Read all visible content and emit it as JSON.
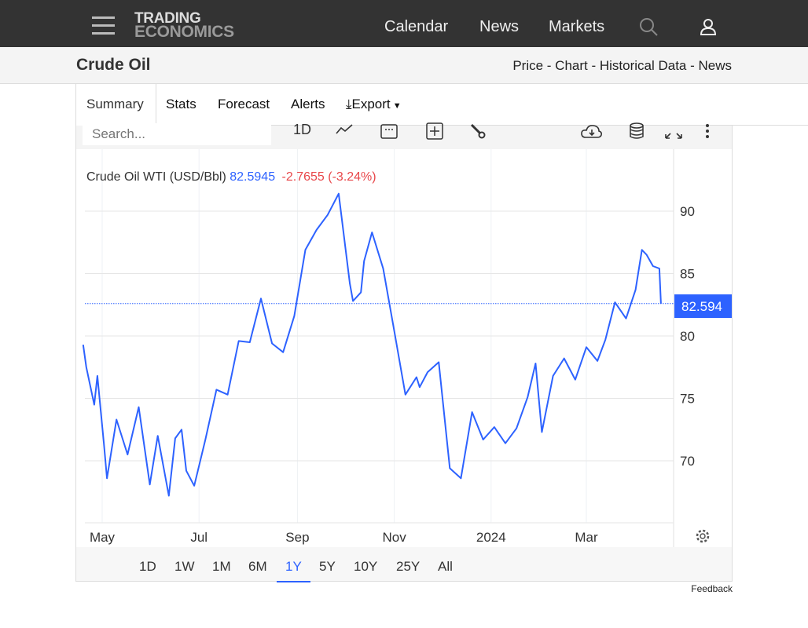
{
  "header": {
    "logo_line1": "TRADING",
    "logo_line2": "ECONOMICS",
    "nav": [
      "Calendar",
      "News",
      "Markets"
    ],
    "icons": [
      "menu-icon",
      "search-icon",
      "user-icon"
    ]
  },
  "page": {
    "title": "Crude Oil",
    "sublinks": "Price - Chart - Historical Data - News"
  },
  "tabs": [
    "Summary",
    "Stats",
    "Forecast",
    "Alerts",
    "Export"
  ],
  "active_tab": "Summary",
  "toolbar": {
    "search_placeholder": "Search...",
    "interval": "1D",
    "icons": [
      "line-chart-icon",
      "calendar-icon",
      "add-icon",
      "wrench-icon",
      "cloud-download-icon",
      "database-icon",
      "fullscreen-icon",
      "more-icon"
    ]
  },
  "legend": {
    "name": "Crude Oil WTI (USD/Bbl)",
    "value": "82.5945",
    "change": "-2.7655 (-3.24%)"
  },
  "price_tag": "82.594",
  "ranges": [
    "1D",
    "1W",
    "1M",
    "6M",
    "1Y",
    "5Y",
    "10Y",
    "25Y",
    "All"
  ],
  "active_range": "1Y",
  "feedback": "Feedback",
  "colors": {
    "line": "#2d62ff",
    "negative": "#e8474a",
    "topbar": "#333333"
  },
  "chart_data": {
    "type": "line",
    "title": "Crude Oil WTI (USD/Bbl)",
    "y_axis_position": "right",
    "ylim": [
      65,
      95
    ],
    "yticks": [
      70,
      75,
      80,
      85,
      90
    ],
    "xtick_labels": [
      "May",
      "Jul",
      "Sep",
      "Nov",
      "2024",
      "Mar"
    ],
    "grid": true,
    "last_value": 82.5945,
    "series": [
      {
        "name": "Crude Oil WTI",
        "points": [
          [
            "2023-04-19",
            79.3
          ],
          [
            "2023-04-21",
            77.5
          ],
          [
            "2023-04-26",
            74.5
          ],
          [
            "2023-04-28",
            76.8
          ],
          [
            "2023-05-02",
            71.5
          ],
          [
            "2023-05-04",
            68.6
          ],
          [
            "2023-05-10",
            73.3
          ],
          [
            "2023-05-17",
            70.5
          ],
          [
            "2023-05-24",
            74.3
          ],
          [
            "2023-05-31",
            68.1
          ],
          [
            "2023-06-05",
            72.0
          ],
          [
            "2023-06-12",
            67.2
          ],
          [
            "2023-06-16",
            71.8
          ],
          [
            "2023-06-20",
            72.5
          ],
          [
            "2023-06-23",
            69.2
          ],
          [
            "2023-06-28",
            68.0
          ],
          [
            "2023-07-05",
            71.7
          ],
          [
            "2023-07-12",
            75.7
          ],
          [
            "2023-07-19",
            75.3
          ],
          [
            "2023-07-26",
            79.6
          ],
          [
            "2023-08-02",
            79.5
          ],
          [
            "2023-08-09",
            83.0
          ],
          [
            "2023-08-16",
            79.4
          ],
          [
            "2023-08-23",
            78.7
          ],
          [
            "2023-08-30",
            81.6
          ],
          [
            "2023-09-06",
            86.9
          ],
          [
            "2023-09-13",
            88.5
          ],
          [
            "2023-09-20",
            89.7
          ],
          [
            "2023-09-27",
            91.4
          ],
          [
            "2023-10-04",
            84.2
          ],
          [
            "2023-10-06",
            82.8
          ],
          [
            "2023-10-11",
            83.5
          ],
          [
            "2023-10-13",
            86.0
          ],
          [
            "2023-10-18",
            88.3
          ],
          [
            "2023-10-25",
            85.4
          ],
          [
            "2023-11-01",
            80.4
          ],
          [
            "2023-11-08",
            75.3
          ],
          [
            "2023-11-15",
            76.7
          ],
          [
            "2023-11-17",
            75.9
          ],
          [
            "2023-11-22",
            77.1
          ],
          [
            "2023-11-29",
            77.9
          ],
          [
            "2023-12-06",
            69.4
          ],
          [
            "2023-12-13",
            68.6
          ],
          [
            "2023-12-20",
            73.9
          ],
          [
            "2023-12-27",
            71.7
          ],
          [
            "2024-01-03",
            72.7
          ],
          [
            "2024-01-10",
            71.4
          ],
          [
            "2024-01-17",
            72.6
          ],
          [
            "2024-01-24",
            75.1
          ],
          [
            "2024-01-29",
            77.8
          ],
          [
            "2024-02-02",
            72.3
          ],
          [
            "2024-02-09",
            76.8
          ],
          [
            "2024-02-16",
            78.2
          ],
          [
            "2024-02-23",
            76.5
          ],
          [
            "2024-03-01",
            79.1
          ],
          [
            "2024-03-08",
            78.0
          ],
          [
            "2024-03-13",
            79.7
          ],
          [
            "2024-03-19",
            82.7
          ],
          [
            "2024-03-26",
            81.4
          ],
          [
            "2024-04-01",
            83.7
          ],
          [
            "2024-04-05",
            86.9
          ],
          [
            "2024-04-08",
            86.5
          ],
          [
            "2024-04-12",
            85.6
          ],
          [
            "2024-04-16",
            85.4
          ],
          [
            "2024-04-17",
            82.59
          ]
        ]
      }
    ]
  }
}
